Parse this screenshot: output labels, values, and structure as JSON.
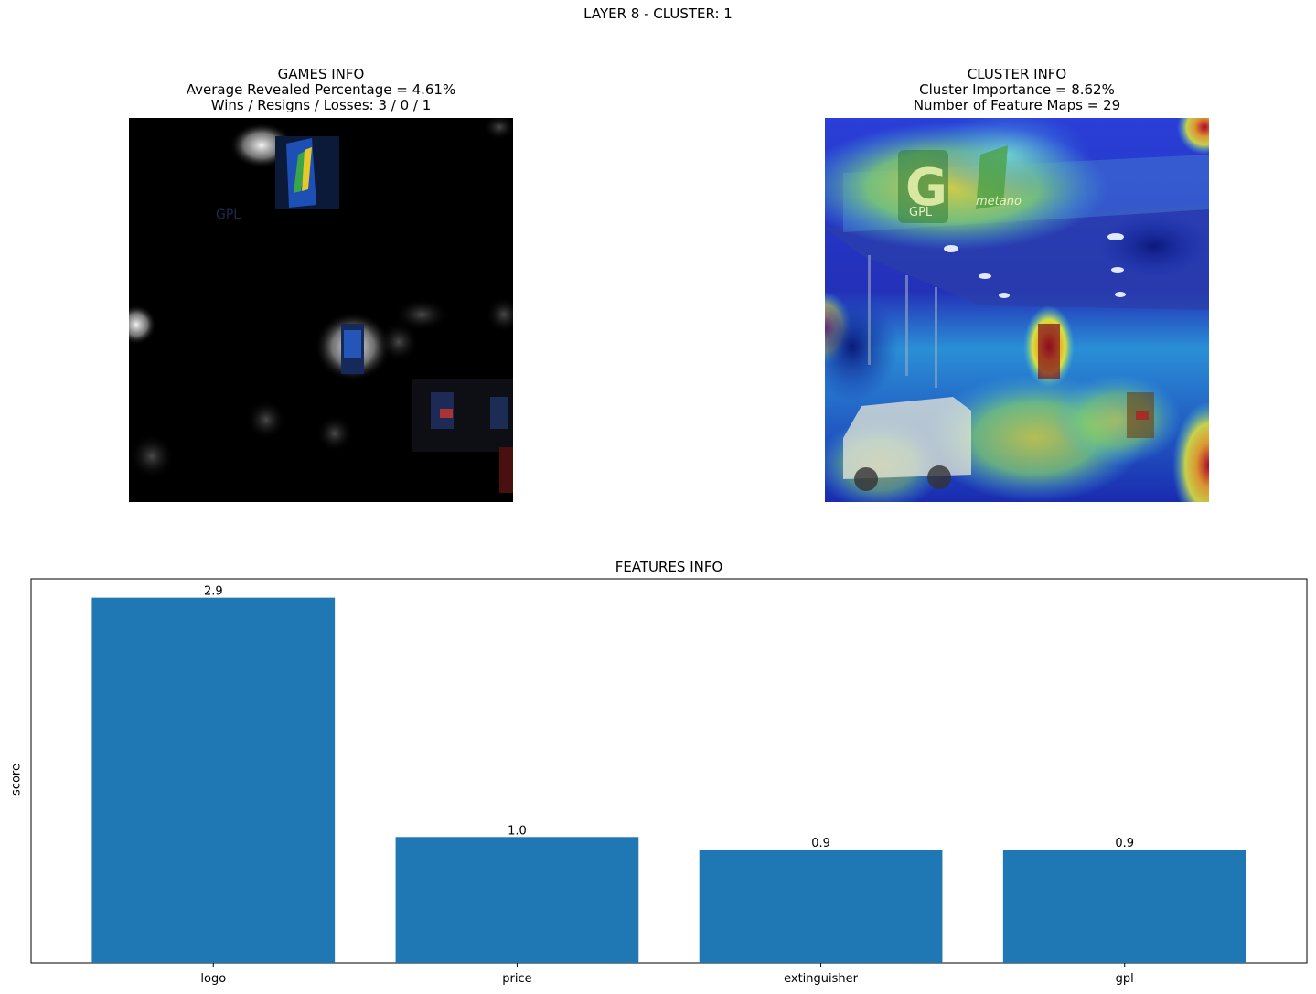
{
  "suptitle": "LAYER 8 - CLUSTER: 1",
  "games_info": {
    "title": "GAMES INFO",
    "line1": "Average Revealed Percentage = 4.61%",
    "line2": "Wins / Resigns / Losses: 3 / 0 / 1"
  },
  "cluster_info": {
    "title": "CLUSTER INFO",
    "line1": "Cluster Importance = 8.62%",
    "line2": "Number of Feature Maps = 29"
  },
  "image_text": {
    "brand_left": "G",
    "brand_sub_left": "GPL",
    "brand_sub_right": "metano"
  },
  "chart_data": {
    "type": "bar",
    "title": "FEATURES INFO",
    "xlabel": "",
    "ylabel": "score",
    "categories": [
      "logo",
      "price",
      "extinguisher",
      "gpl"
    ],
    "values": [
      2.9,
      1.0,
      0.9,
      0.9
    ],
    "value_labels": [
      "2.9",
      "1.0",
      "0.9",
      "0.9"
    ],
    "ylim": [
      0,
      3.05
    ],
    "bar_color": "#1f77b4",
    "grid": false,
    "y_ticks_shown": false
  }
}
